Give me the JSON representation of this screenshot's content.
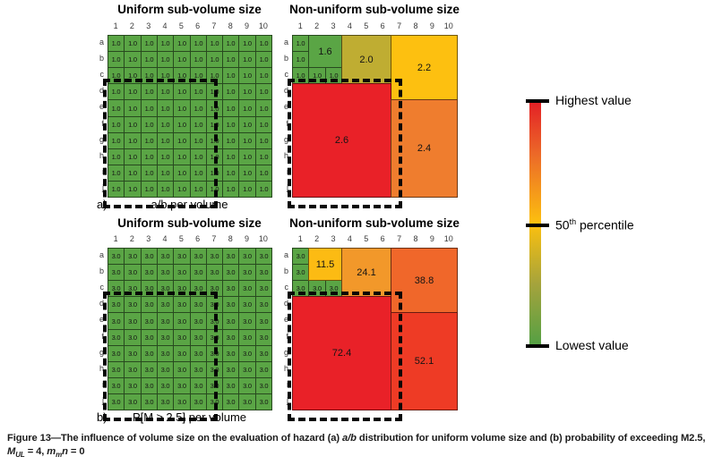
{
  "colors": {
    "background": "#ffffff",
    "grid_line": "#2f2f2f",
    "green": "#5AA545",
    "olive": "#BFAD32",
    "yellow": "#FDC010",
    "yellow_deep": "#FCBB13",
    "orange_light": "#F2982A",
    "orange": "#EF7D2E",
    "orange_deep": "#F0672A",
    "red_orange": "#EE3B25",
    "red": "#E92128",
    "dashed_outline": "#070707"
  },
  "chart_data": [
    {
      "id": "a_uniform",
      "type": "heatmap",
      "title": "Uniform sub-volume size",
      "panel_label": "a)",
      "caption": "a/b per volume",
      "columns": [
        "1",
        "2",
        "3",
        "4",
        "5",
        "6",
        "7",
        "8",
        "9",
        "10"
      ],
      "rows": [
        "a",
        "b",
        "c",
        "d",
        "e",
        "f",
        "g",
        "h",
        "i",
        "j"
      ],
      "cell_value": "1.0",
      "cell_color": "#5AA545",
      "dashed_region": {
        "col_start": 1,
        "col_end": 6,
        "row_start": 4,
        "row_end": 10
      }
    },
    {
      "id": "a_nonuniform",
      "type": "heatmap_blocks",
      "title": "Non-uniform sub-volume size",
      "columns": [
        "1",
        "2",
        "3",
        "4",
        "5",
        "6",
        "7",
        "8",
        "9",
        "10"
      ],
      "rows": [
        "a",
        "b",
        "c",
        "d",
        "e",
        "f",
        "g",
        "h",
        "i",
        "j"
      ],
      "blocks": [
        {
          "value": "1.0",
          "col_start": 1,
          "col_end": 1,
          "row_start": 1,
          "row_end": 1,
          "color": "#5AA545"
        },
        {
          "value": "1.0",
          "col_start": 1,
          "col_end": 1,
          "row_start": 2,
          "row_end": 2,
          "color": "#5AA545"
        },
        {
          "value": "1.0",
          "col_start": 1,
          "col_end": 1,
          "row_start": 3,
          "row_end": 3,
          "color": "#5AA545"
        },
        {
          "value": "1.0",
          "col_start": 2,
          "col_end": 2,
          "row_start": 3,
          "row_end": 3,
          "color": "#5AA545"
        },
        {
          "value": "1.0",
          "col_start": 3,
          "col_end": 3,
          "row_start": 3,
          "row_end": 3,
          "color": "#5AA545"
        },
        {
          "value": "1.6",
          "col_start": 2,
          "col_end": 3,
          "row_start": 1,
          "row_end": 2,
          "color": "#5AA545"
        },
        {
          "value": "2.0",
          "col_start": 4,
          "col_end": 6,
          "row_start": 1,
          "row_end": 3,
          "color": "#BFAD32"
        },
        {
          "value": "2.2",
          "col_start": 7,
          "col_end": 10,
          "row_start": 1,
          "row_end": 4,
          "color": "#FDC010"
        },
        {
          "value": "2.6",
          "col_start": 1,
          "col_end": 6,
          "row_start": 4,
          "row_end": 10,
          "color": "#E92128",
          "dashed": true
        },
        {
          "value": "2.4",
          "col_start": 7,
          "col_end": 10,
          "row_start": 5,
          "row_end": 10,
          "color": "#EF7D2E"
        }
      ]
    },
    {
      "id": "b_uniform",
      "type": "heatmap",
      "title": "Uniform sub-volume size",
      "panel_label": "b)",
      "caption": "P[M ≥ 2.5] per volume",
      "columns": [
        "1",
        "2",
        "3",
        "4",
        "5",
        "6",
        "7",
        "8",
        "9",
        "10"
      ],
      "rows": [
        "a",
        "b",
        "c",
        "d",
        "e",
        "f",
        "g",
        "h",
        "i",
        "j"
      ],
      "cell_value": "3.0",
      "cell_color": "#5AA545",
      "dashed_region": {
        "col_start": 1,
        "col_end": 6,
        "row_start": 4,
        "row_end": 10
      }
    },
    {
      "id": "b_nonuniform",
      "type": "heatmap_blocks",
      "title": "Non-uniform sub-volume size",
      "columns": [
        "1",
        "2",
        "3",
        "4",
        "5",
        "6",
        "7",
        "8",
        "9",
        "10"
      ],
      "rows": [
        "a",
        "b",
        "c",
        "d",
        "e",
        "f",
        "g",
        "h",
        "i",
        "j"
      ],
      "blocks": [
        {
          "value": "3.0",
          "col_start": 1,
          "col_end": 1,
          "row_start": 1,
          "row_end": 1,
          "color": "#5AA545"
        },
        {
          "value": "3.0",
          "col_start": 1,
          "col_end": 1,
          "row_start": 2,
          "row_end": 2,
          "color": "#5AA545"
        },
        {
          "value": "3.0",
          "col_start": 1,
          "col_end": 1,
          "row_start": 3,
          "row_end": 3,
          "color": "#5AA545"
        },
        {
          "value": "3.0",
          "col_start": 2,
          "col_end": 2,
          "row_start": 3,
          "row_end": 3,
          "color": "#5AA545"
        },
        {
          "value": "3.0",
          "col_start": 3,
          "col_end": 3,
          "row_start": 3,
          "row_end": 3,
          "color": "#5AA545"
        },
        {
          "value": "11.5",
          "col_start": 2,
          "col_end": 3,
          "row_start": 1,
          "row_end": 2,
          "color": "#FCBB13"
        },
        {
          "value": "24.1",
          "col_start": 4,
          "col_end": 6,
          "row_start": 1,
          "row_end": 3,
          "color": "#F2982A"
        },
        {
          "value": "38.8",
          "col_start": 7,
          "col_end": 10,
          "row_start": 1,
          "row_end": 4,
          "color": "#F0672A"
        },
        {
          "value": "72.4",
          "col_start": 1,
          "col_end": 6,
          "row_start": 4,
          "row_end": 10,
          "color": "#E92128",
          "dashed": true
        },
        {
          "value": "52.1",
          "col_start": 7,
          "col_end": 10,
          "row_start": 5,
          "row_end": 10,
          "color": "#EE3B25"
        }
      ]
    }
  ],
  "legend": {
    "top_label": "Highest value",
    "mid_label_prefix": "50",
    "mid_label_sup": "th",
    "mid_label_suffix": " percentile",
    "bottom_label": "Lowest value",
    "gradient": [
      "#E31F26",
      "#EC6A28",
      "#FCC00F",
      "#A4A33C",
      "#53A044"
    ]
  },
  "caption": {
    "line1_parts": [
      {
        "t": "Figure 13—The influence of volume size on the evaluation of hazard (a) "
      },
      {
        "t": "a/b",
        "i": true
      },
      {
        "t": " distribution for uniform volume size and (b) probability of exceeding M2.5,"
      }
    ],
    "line2_parts": [
      {
        "t": "M",
        "i": true
      },
      {
        "t": "UL",
        "i": true,
        "sub": true
      },
      {
        "t": " = 4, "
      },
      {
        "t": "m",
        "i": true
      },
      {
        "t": "m",
        "i": true,
        "sub": true
      },
      {
        "t": "n",
        "i": true
      },
      {
        "t": " = 0"
      }
    ]
  }
}
